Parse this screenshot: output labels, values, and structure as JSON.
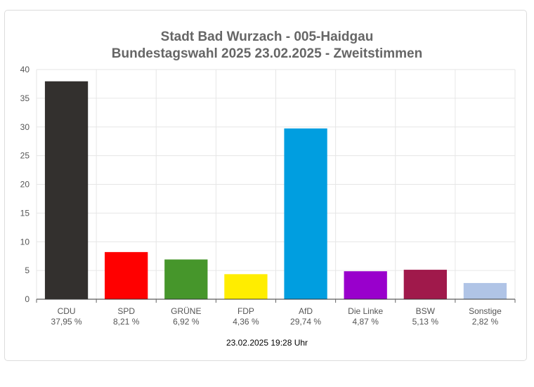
{
  "chart_data": {
    "type": "bar",
    "title": "Stadt Bad Wurzach - 005-Haidgau",
    "subtitle": "Bundestagswahl 2025 23.02.2025  - Zweitstimmen",
    "categories": [
      "CDU",
      "SPD",
      "GRÜNE",
      "FDP",
      "AfD",
      "Die Linke",
      "BSW",
      "Sonstige"
    ],
    "value_labels": [
      "37,95 %",
      "8,21 %",
      "6,92 %",
      "4,36 %",
      "29,74 %",
      "4,87 %",
      "5,13 %",
      "2,82 %"
    ],
    "values": [
      37.95,
      8.21,
      6.92,
      4.36,
      29.74,
      4.87,
      5.13,
      2.82
    ],
    "colors": [
      "#33302e",
      "#ff0000",
      "#46962b",
      "#ffed00",
      "#009ee0",
      "#9900cc",
      "#a0194b",
      "#b0c4e6"
    ],
    "ylim": [
      0,
      40
    ],
    "yticks": [
      0,
      5,
      10,
      15,
      20,
      25,
      30,
      35,
      40
    ],
    "grid": true,
    "legend": "none"
  },
  "footer": "23.02.2025 19:28 Uhr"
}
